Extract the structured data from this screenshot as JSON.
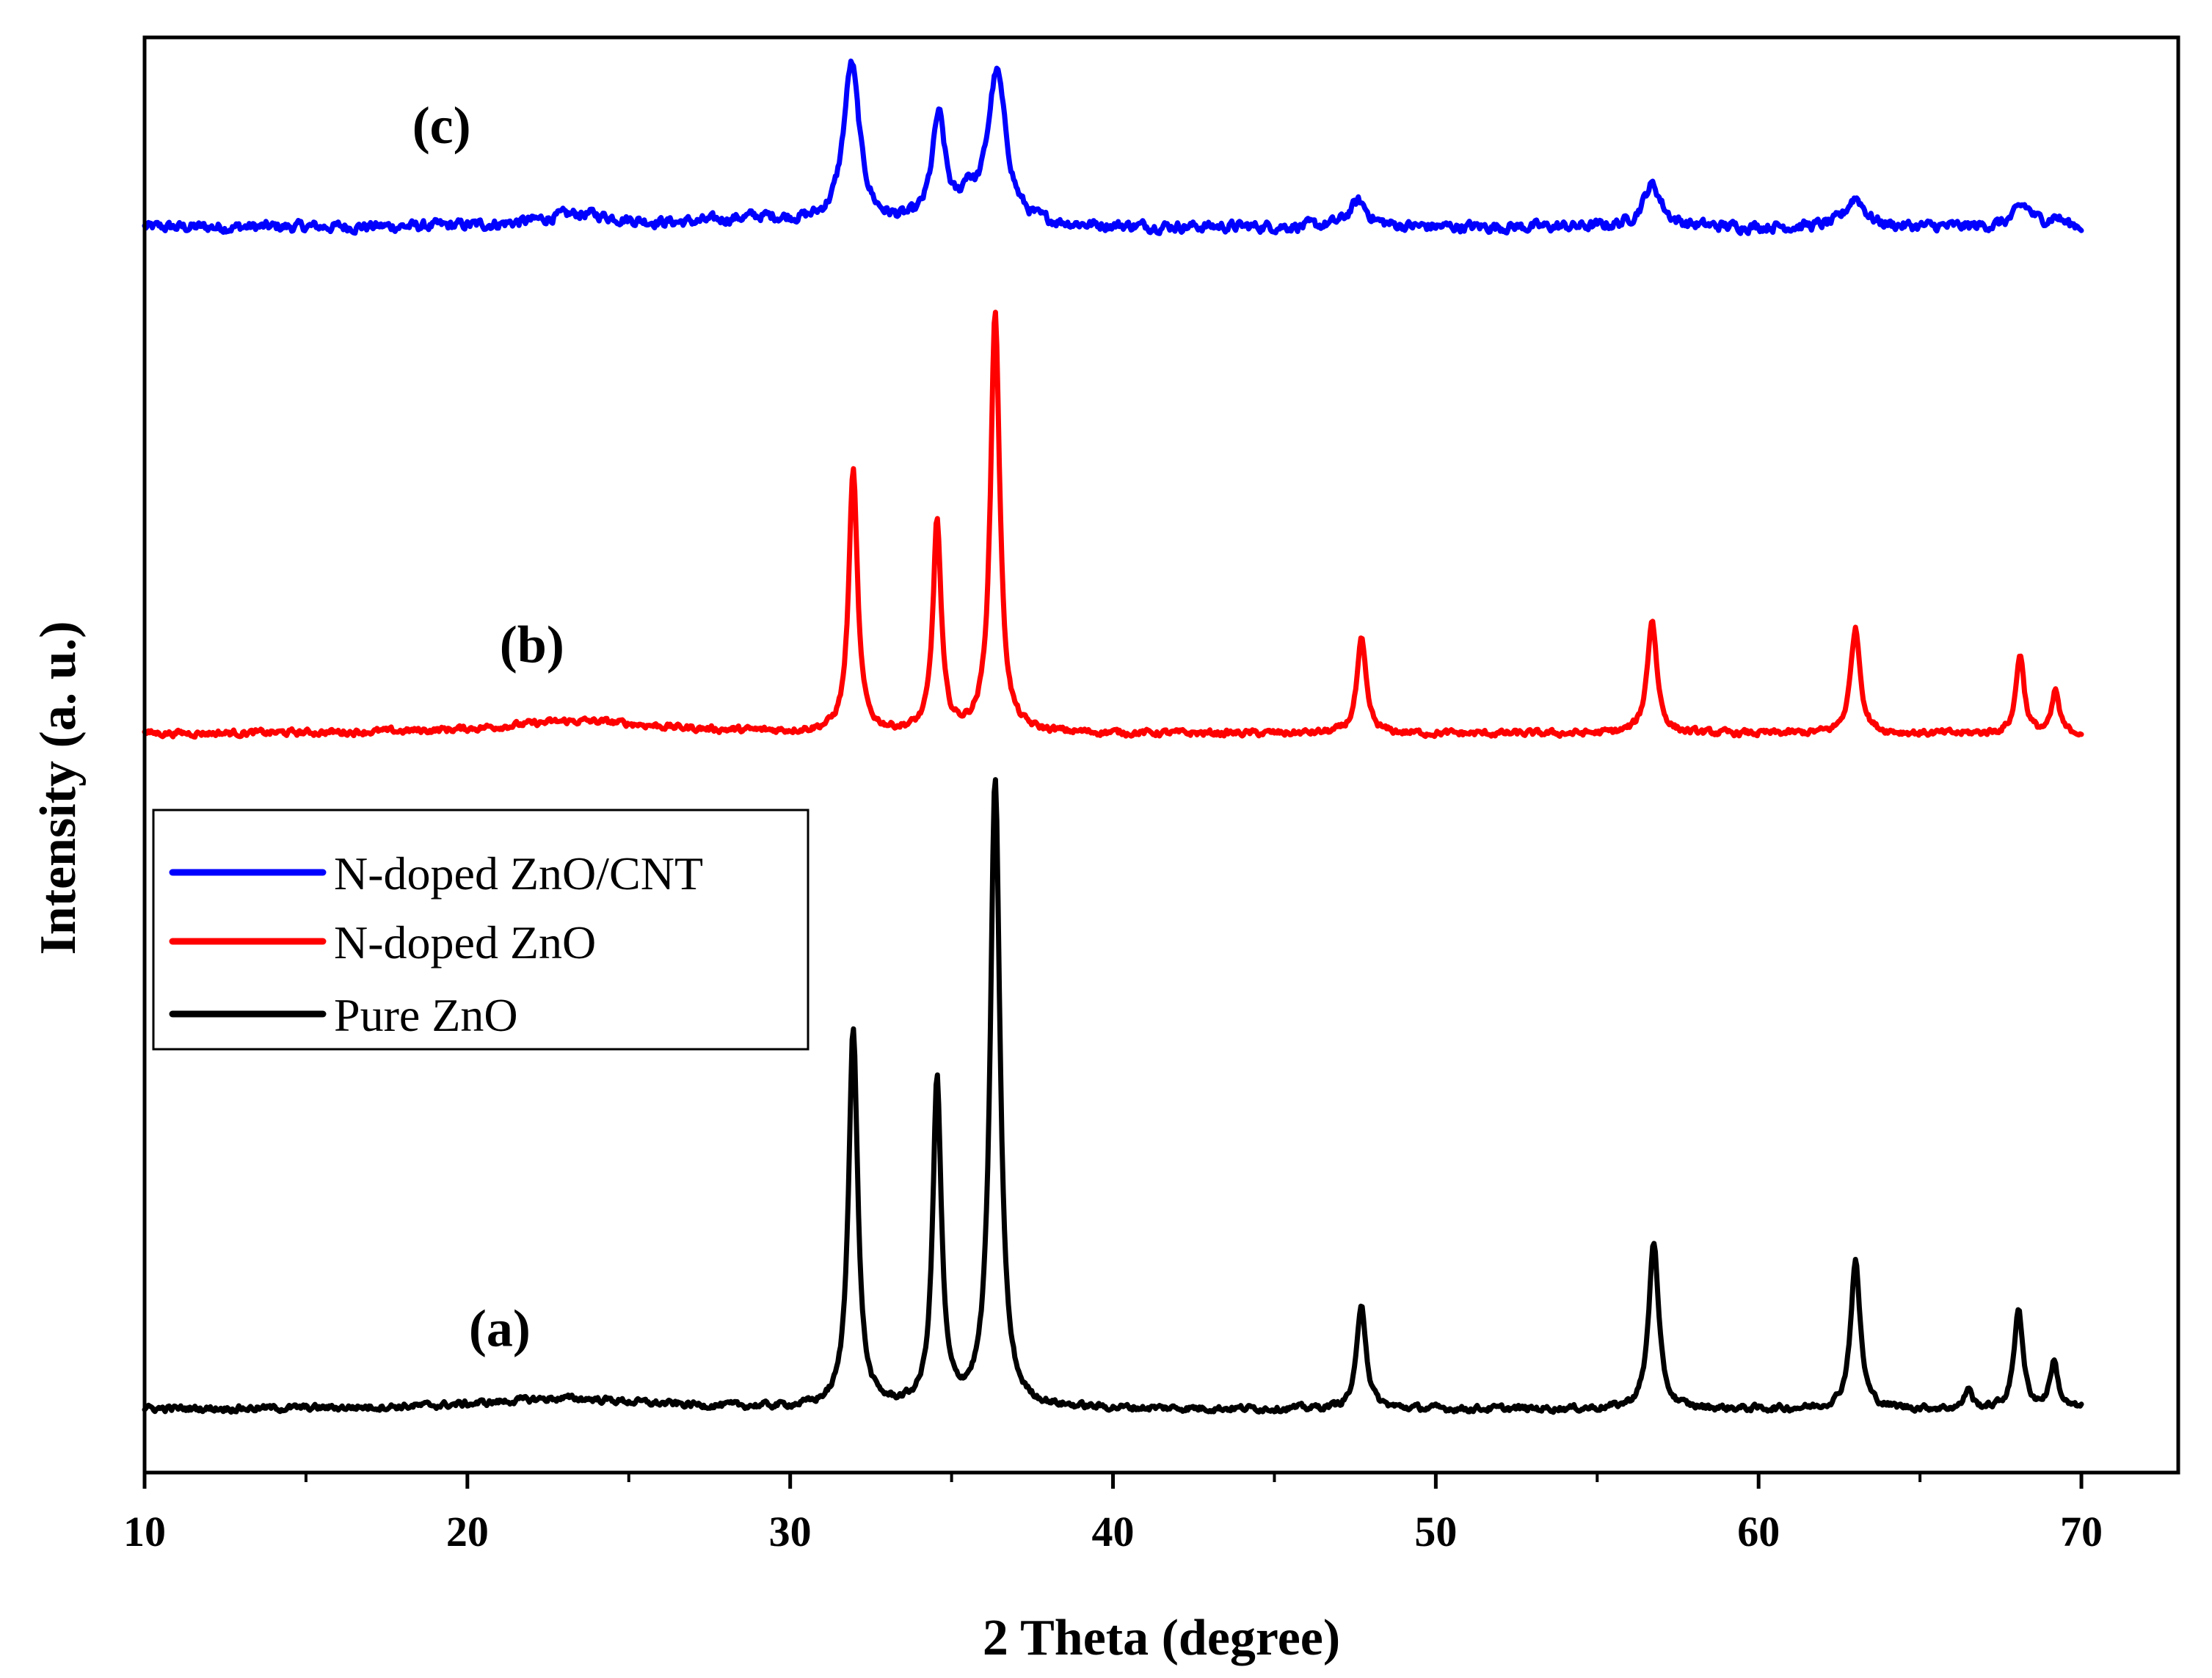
{
  "chart_data": {
    "type": "line",
    "title": "",
    "xlabel": "2 Theta (degree)",
    "ylabel": "Intensity (a. u.)",
    "xlim": [
      10,
      73
    ],
    "ylim": [
      0,
      3.4
    ],
    "xticks": [
      "10",
      "20",
      "30",
      "40",
      "50",
      "60",
      "70"
    ],
    "grid": false,
    "legend_position": "middle-left",
    "series": [
      {
        "name": "N-doped ZnO/CNT",
        "label": "(c)",
        "color": "#0000ff",
        "baseline": 2.95,
        "label_x": 19.2,
        "label_y": 3.15,
        "noise": 0.01,
        "peaks": [
          {
            "x": 23.5,
            "h": 0.03,
            "w": 1.5
          },
          {
            "x": 29.0,
            "h": 0.02,
            "w": 1.5
          },
          {
            "x": 31.9,
            "h": 0.38,
            "w": 0.3
          },
          {
            "x": 34.6,
            "h": 0.25,
            "w": 0.25
          },
          {
            "x": 35.5,
            "h": 0.06,
            "w": 0.2
          },
          {
            "x": 36.4,
            "h": 0.36,
            "w": 0.35
          },
          {
            "x": 47.6,
            "h": 0.06,
            "w": 0.35
          },
          {
            "x": 56.7,
            "h": 0.1,
            "w": 0.35
          },
          {
            "x": 63.0,
            "h": 0.07,
            "w": 0.35
          },
          {
            "x": 68.2,
            "h": 0.05,
            "w": 0.35
          },
          {
            "x": 69.2,
            "h": 0.02,
            "w": 0.25
          }
        ]
      },
      {
        "name": "N-doped ZnO",
        "label": "(b)",
        "color": "#ff0000",
        "baseline": 1.75,
        "label_x": 22.0,
        "label_y": 1.92,
        "noise": 0.006,
        "peaks": [
          {
            "x": 23.5,
            "h": 0.03,
            "w": 3.0
          },
          {
            "x": 31.95,
            "h": 0.62,
            "w": 0.16
          },
          {
            "x": 34.55,
            "h": 0.5,
            "w": 0.15
          },
          {
            "x": 36.35,
            "h": 1.0,
            "w": 0.17
          },
          {
            "x": 47.7,
            "h": 0.22,
            "w": 0.17
          },
          {
            "x": 56.7,
            "h": 0.27,
            "w": 0.18
          },
          {
            "x": 63.0,
            "h": 0.25,
            "w": 0.18
          },
          {
            "x": 68.1,
            "h": 0.19,
            "w": 0.15
          },
          {
            "x": 69.2,
            "h": 0.1,
            "w": 0.13
          }
        ]
      },
      {
        "name": "Pure ZnO",
        "label": "(a)",
        "color": "#000000",
        "baseline": 0.15,
        "label_x": 21.0,
        "label_y": 0.3,
        "noise": 0.006,
        "peaks": [
          {
            "x": 23.0,
            "h": 0.025,
            "w": 3.0
          },
          {
            "x": 31.95,
            "h": 0.9,
            "w": 0.17
          },
          {
            "x": 34.55,
            "h": 0.77,
            "w": 0.16
          },
          {
            "x": 36.35,
            "h": 1.49,
            "w": 0.18
          },
          {
            "x": 47.7,
            "h": 0.25,
            "w": 0.17
          },
          {
            "x": 56.75,
            "h": 0.4,
            "w": 0.18
          },
          {
            "x": 63.0,
            "h": 0.35,
            "w": 0.18
          },
          {
            "x": 66.5,
            "h": 0.05,
            "w": 0.12
          },
          {
            "x": 68.05,
            "h": 0.24,
            "w": 0.16
          },
          {
            "x": 69.15,
            "h": 0.11,
            "w": 0.15
          }
        ]
      }
    ]
  }
}
